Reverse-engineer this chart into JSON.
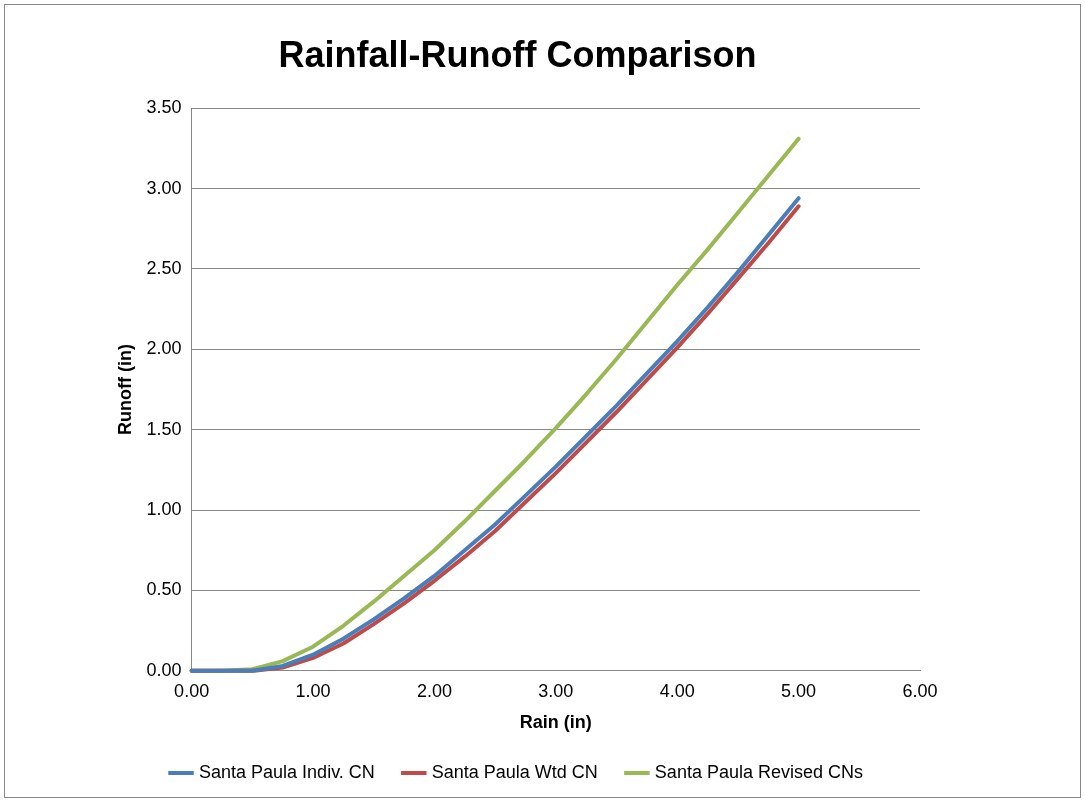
{
  "chart_data": {
    "type": "line",
    "title": "Rainfall-Runoff Comparison",
    "xlabel": "Rain (in)",
    "ylabel": "Runoff (in)",
    "x": [
      0,
      0.25,
      0.5,
      0.75,
      1,
      1.25,
      1.5,
      1.75,
      2,
      2.25,
      2.5,
      2.75,
      3,
      3.25,
      3.5,
      3.75,
      4,
      4.25,
      4.5,
      4.75,
      5
    ],
    "series": [
      {
        "name": "Santa Paula Indiv. CN",
        "color": "#4a7ebb",
        "values": [
          0,
          0,
          0,
          0.03,
          0.1,
          0.2,
          0.32,
          0.45,
          0.59,
          0.75,
          0.91,
          1.09,
          1.27,
          1.46,
          1.65,
          1.85,
          2.05,
          2.26,
          2.48,
          2.71,
          2.94
        ]
      },
      {
        "name": "Santa Paula Wtd CN",
        "color": "#be4b48",
        "values": [
          0,
          0,
          0,
          0.02,
          0.08,
          0.17,
          0.29,
          0.42,
          0.56,
          0.71,
          0.87,
          1.05,
          1.23,
          1.42,
          1.61,
          1.81,
          2.01,
          2.22,
          2.44,
          2.66,
          2.89
        ]
      },
      {
        "name": "Santa Paula Revised CNs",
        "color": "#98b954",
        "values": [
          0,
          0,
          0.01,
          0.06,
          0.15,
          0.28,
          0.43,
          0.59,
          0.75,
          0.93,
          1.12,
          1.31,
          1.51,
          1.72,
          1.94,
          2.17,
          2.4,
          2.62,
          2.85,
          3.08,
          3.31
        ]
      }
    ],
    "xlim": [
      0,
      6
    ],
    "xticks": [
      {
        "value": 0,
        "label": "0.00"
      },
      {
        "value": 1,
        "label": "1.00"
      },
      {
        "value": 2,
        "label": "2.00"
      },
      {
        "value": 3,
        "label": "3.00"
      },
      {
        "value": 4,
        "label": "4.00"
      },
      {
        "value": 5,
        "label": "5.00"
      },
      {
        "value": 6,
        "label": "6.00"
      }
    ],
    "ylim": [
      0,
      3.5
    ],
    "yticks": [
      {
        "value": 0,
        "label": "0.00"
      },
      {
        "value": 0.5,
        "label": "0.50"
      },
      {
        "value": 1,
        "label": "1.00"
      },
      {
        "value": 1.5,
        "label": "1.50"
      },
      {
        "value": 2,
        "label": "2.00"
      },
      {
        "value": 2.5,
        "label": "2.50"
      },
      {
        "value": 3,
        "label": "3.00"
      },
      {
        "value": 3.5,
        "label": "3.50"
      }
    ],
    "grid": "y",
    "legend": "bottom",
    "marker": "none",
    "line_style": "solid"
  }
}
